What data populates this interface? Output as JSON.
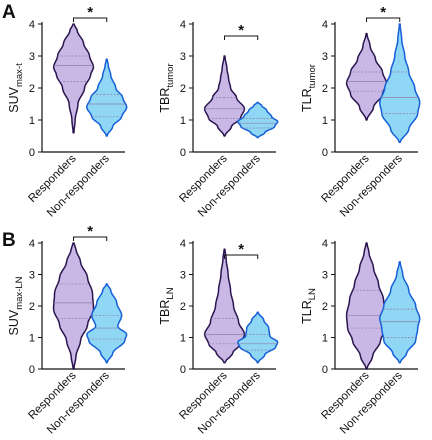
{
  "panel_labels": [
    "A",
    "B"
  ],
  "colors": {
    "responders_fill": "#c9b8e6",
    "responders_stroke": "#2b1550",
    "non_responders_fill": "#8fd7f5",
    "non_responders_stroke": "#1560d8",
    "quartile_line": "#8c7fa8",
    "axis": "#111111"
  },
  "chart_data": [
    {
      "type": "violin",
      "panel": "A",
      "ylabel_main": "SUV",
      "ylabel_sub": "max-t",
      "ylim": [
        0,
        4
      ],
      "yticks": [
        "0",
        "1",
        "2",
        "3",
        "4"
      ],
      "categories": [
        "Responders",
        "Non-responders"
      ],
      "significance": "*",
      "violins": [
        {
          "min": 0.6,
          "max": 4.0,
          "q1": 2.2,
          "median": 2.7,
          "q3": 3.0,
          "profile": [
            [
              0.6,
              0.02
            ],
            [
              1.0,
              0.08
            ],
            [
              1.5,
              0.22
            ],
            [
              2.0,
              0.55
            ],
            [
              2.4,
              0.85
            ],
            [
              2.65,
              1.0
            ],
            [
              3.0,
              0.8
            ],
            [
              3.4,
              0.5
            ],
            [
              3.8,
              0.18
            ],
            [
              4.0,
              0.02
            ]
          ]
        },
        {
          "min": 0.5,
          "max": 2.9,
          "q1": 1.1,
          "median": 1.5,
          "q3": 1.8,
          "profile": [
            [
              0.5,
              0.02
            ],
            [
              0.8,
              0.3
            ],
            [
              1.1,
              0.75
            ],
            [
              1.4,
              1.0
            ],
            [
              1.7,
              0.8
            ],
            [
              2.0,
              0.45
            ],
            [
              2.4,
              0.2
            ],
            [
              2.7,
              0.08
            ],
            [
              2.9,
              0.02
            ]
          ]
        }
      ]
    },
    {
      "type": "violin",
      "panel": "A",
      "ylabel_main": "TBR",
      "ylabel_sub": "tumor",
      "ylim": [
        0,
        4
      ],
      "yticks": [
        "0",
        "1",
        "2",
        "3",
        "4"
      ],
      "categories": [
        "Responders",
        "Non-responders"
      ],
      "significance": "*",
      "violins": [
        {
          "min": 0.5,
          "max": 3.0,
          "q1": 1.05,
          "median": 1.35,
          "q3": 1.7,
          "profile": [
            [
              0.5,
              0.02
            ],
            [
              0.8,
              0.35
            ],
            [
              1.05,
              0.8
            ],
            [
              1.35,
              1.0
            ],
            [
              1.7,
              0.6
            ],
            [
              2.0,
              0.3
            ],
            [
              2.3,
              0.2
            ],
            [
              2.6,
              0.12
            ],
            [
              3.0,
              0.02
            ]
          ]
        },
        {
          "min": 0.45,
          "max": 1.55,
          "q1": 0.75,
          "median": 0.9,
          "q3": 1.05,
          "profile": [
            [
              0.45,
              0.02
            ],
            [
              0.6,
              0.35
            ],
            [
              0.8,
              0.85
            ],
            [
              0.95,
              1.0
            ],
            [
              1.1,
              0.7
            ],
            [
              1.3,
              0.45
            ],
            [
              1.45,
              0.2
            ],
            [
              1.55,
              0.02
            ]
          ]
        }
      ]
    },
    {
      "type": "violin",
      "panel": "A",
      "ylabel_main": "TLR",
      "ylabel_sub": "tumor",
      "ylim": [
        0,
        4
      ],
      "yticks": [
        "0",
        "1",
        "2",
        "3",
        "4"
      ],
      "categories": [
        "Responders",
        "Non-responders"
      ],
      "significance": "*",
      "violins": [
        {
          "min": 1.0,
          "max": 3.7,
          "q1": 1.9,
          "median": 2.2,
          "q3": 2.5,
          "profile": [
            [
              1.0,
              0.02
            ],
            [
              1.4,
              0.35
            ],
            [
              1.8,
              0.8
            ],
            [
              2.15,
              1.0
            ],
            [
              2.5,
              0.8
            ],
            [
              2.9,
              0.45
            ],
            [
              3.3,
              0.18
            ],
            [
              3.7,
              0.02
            ]
          ]
        },
        {
          "min": 0.3,
          "max": 4.0,
          "q1": 1.2,
          "median": 1.7,
          "q3": 2.5,
          "profile": [
            [
              0.3,
              0.02
            ],
            [
              0.7,
              0.45
            ],
            [
              1.2,
              0.9
            ],
            [
              1.55,
              1.0
            ],
            [
              2.0,
              0.75
            ],
            [
              2.5,
              0.45
            ],
            [
              3.0,
              0.25
            ],
            [
              3.5,
              0.1
            ],
            [
              4.0,
              0.02
            ]
          ]
        }
      ]
    },
    {
      "type": "violin",
      "panel": "B",
      "ylabel_main": "SUV",
      "ylabel_sub": "max-LN",
      "ylim": [
        0,
        4
      ],
      "yticks": [
        "0",
        "1",
        "2",
        "3",
        "4"
      ],
      "categories": [
        "Responders",
        "Non-responders"
      ],
      "significance": "*",
      "violins": [
        {
          "min": 0.0,
          "max": 4.0,
          "q1": 1.6,
          "median": 2.1,
          "q3": 2.7,
          "profile": [
            [
              0.0,
              0.02
            ],
            [
              0.4,
              0.12
            ],
            [
              0.9,
              0.35
            ],
            [
              1.4,
              0.7
            ],
            [
              1.9,
              1.0
            ],
            [
              2.4,
              0.95
            ],
            [
              2.9,
              0.7
            ],
            [
              3.4,
              0.35
            ],
            [
              3.8,
              0.12
            ],
            [
              4.0,
              0.02
            ]
          ]
        },
        {
          "min": 0.2,
          "max": 2.7,
          "q1": 0.95,
          "median": 1.3,
          "q3": 1.7,
          "profile": [
            [
              0.2,
              0.02
            ],
            [
              0.5,
              0.3
            ],
            [
              0.9,
              0.9
            ],
            [
              1.1,
              1.0
            ],
            [
              1.35,
              0.55
            ],
            [
              1.7,
              0.75
            ],
            [
              2.1,
              0.5
            ],
            [
              2.5,
              0.2
            ],
            [
              2.7,
              0.02
            ]
          ]
        }
      ]
    },
    {
      "type": "violin",
      "panel": "B",
      "ylabel_main": "TBR",
      "ylabel_sub": "LN",
      "ylim": [
        0,
        4
      ],
      "yticks": [
        "0",
        "1",
        "2",
        "3",
        "4"
      ],
      "categories": [
        "Responders",
        "Non-responders"
      ],
      "significance": "*",
      "violins": [
        {
          "min": 0.2,
          "max": 3.8,
          "q1": 0.8,
          "median": 1.1,
          "q3": 1.6,
          "profile": [
            [
              0.2,
              0.02
            ],
            [
              0.5,
              0.4
            ],
            [
              0.8,
              0.8
            ],
            [
              1.1,
              1.0
            ],
            [
              1.5,
              0.7
            ],
            [
              2.0,
              0.45
            ],
            [
              2.5,
              0.3
            ],
            [
              3.0,
              0.18
            ],
            [
              3.5,
              0.08
            ],
            [
              3.8,
              0.02
            ]
          ]
        },
        {
          "min": 0.2,
          "max": 1.8,
          "q1": 0.6,
          "median": 0.8,
          "q3": 1.1,
          "profile": [
            [
              0.2,
              0.02
            ],
            [
              0.45,
              0.35
            ],
            [
              0.7,
              0.9
            ],
            [
              0.85,
              1.0
            ],
            [
              1.05,
              0.6
            ],
            [
              1.3,
              0.55
            ],
            [
              1.55,
              0.3
            ],
            [
              1.8,
              0.02
            ]
          ]
        }
      ]
    },
    {
      "type": "violin",
      "panel": "B",
      "ylabel_main": "TLR",
      "ylabel_sub": "LN",
      "ylim": [
        0,
        4
      ],
      "yticks": [
        "0",
        "1",
        "2",
        "3",
        "4"
      ],
      "categories": [
        "Responders",
        "Non-responders"
      ],
      "significance": "",
      "violins": [
        {
          "min": 0.0,
          "max": 4.0,
          "q1": 1.3,
          "median": 1.7,
          "q3": 2.5,
          "profile": [
            [
              0.0,
              0.02
            ],
            [
              0.4,
              0.3
            ],
            [
              0.9,
              0.7
            ],
            [
              1.3,
              0.95
            ],
            [
              1.7,
              1.0
            ],
            [
              2.2,
              0.85
            ],
            [
              2.7,
              0.6
            ],
            [
              3.2,
              0.35
            ],
            [
              3.7,
              0.12
            ],
            [
              4.0,
              0.02
            ]
          ]
        },
        {
          "min": 0.2,
          "max": 3.4,
          "q1": 1.0,
          "median": 1.5,
          "q3": 1.9,
          "profile": [
            [
              0.2,
              0.02
            ],
            [
              0.5,
              0.35
            ],
            [
              0.9,
              0.8
            ],
            [
              1.3,
              0.9
            ],
            [
              1.6,
              1.0
            ],
            [
              2.0,
              0.8
            ],
            [
              2.5,
              0.45
            ],
            [
              3.0,
              0.15
            ],
            [
              3.4,
              0.02
            ]
          ]
        }
      ]
    }
  ]
}
